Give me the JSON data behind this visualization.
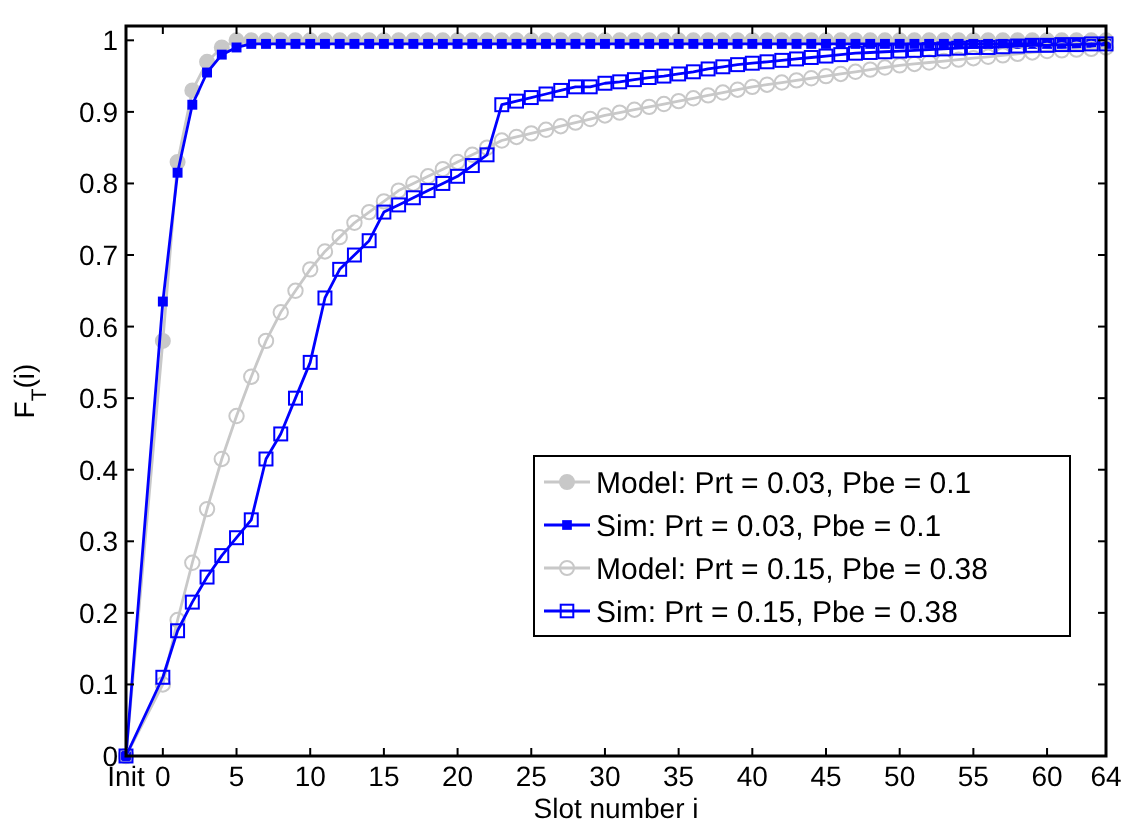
{
  "chart_data": {
    "type": "line",
    "xlabel": "Slot number i",
    "ylabel": "F$_{T}$(i)",
    "xlim": [
      -2.5,
      64
    ],
    "ylim": [
      0,
      1.02
    ],
    "xticks": [
      {
        "value": -2.5,
        "label": "Init"
      },
      0,
      5,
      10,
      15,
      20,
      25,
      30,
      35,
      40,
      45,
      50,
      55,
      60,
      64
    ],
    "yticks": [
      0,
      0.1,
      0.2,
      0.3,
      0.4,
      0.5,
      0.6,
      0.7,
      0.8,
      0.9,
      1
    ],
    "x": [
      -2.5,
      0,
      1,
      2,
      3,
      4,
      5,
      6,
      7,
      8,
      9,
      10,
      11,
      12,
      13,
      14,
      15,
      16,
      17,
      18,
      19,
      20,
      21,
      22,
      23,
      24,
      25,
      26,
      27,
      28,
      29,
      30,
      31,
      32,
      33,
      34,
      35,
      36,
      37,
      38,
      39,
      40,
      41,
      42,
      43,
      44,
      45,
      46,
      47,
      48,
      49,
      50,
      51,
      52,
      53,
      54,
      55,
      56,
      57,
      58,
      59,
      60,
      61,
      62,
      63,
      64
    ],
    "legend": "right",
    "line_style": "solid",
    "series": [
      {
        "name": "Model: Prt = 0.03, Pbe = 0.1",
        "color": "#c8c8c8",
        "marker": "circle",
        "values": [
          0,
          0.58,
          0.83,
          0.93,
          0.97,
          0.99,
          1,
          1,
          1,
          1,
          1,
          1,
          1,
          1,
          1,
          1,
          1,
          1,
          1,
          1,
          1,
          1,
          1,
          1,
          1,
          1,
          1,
          1,
          1,
          1,
          1,
          1,
          1,
          1,
          1,
          1,
          1,
          1,
          1,
          1,
          1,
          1,
          1,
          1,
          1,
          1,
          1,
          1,
          1,
          1,
          1,
          1,
          1,
          1,
          1,
          1,
          1,
          1,
          1,
          1,
          1,
          1,
          1,
          1,
          1,
          1
        ]
      },
      {
        "name": "Sim: Prt = 0.03, Pbe = 0.1",
        "color": "#0000ff",
        "marker": "square",
        "values": [
          0,
          0.635,
          0.815,
          0.91,
          0.955,
          0.98,
          0.99,
          0.995,
          0.995,
          0.995,
          0.995,
          0.995,
          0.995,
          0.995,
          0.995,
          0.995,
          0.995,
          0.995,
          0.995,
          0.995,
          0.995,
          0.995,
          0.995,
          0.995,
          0.995,
          0.995,
          0.995,
          0.995,
          0.995,
          0.995,
          0.995,
          0.995,
          0.995,
          0.995,
          0.995,
          0.995,
          0.995,
          0.995,
          0.995,
          0.995,
          0.995,
          0.995,
          0.995,
          0.995,
          0.995,
          0.995,
          0.995,
          0.995,
          0.995,
          0.995,
          0.995,
          0.995,
          0.995,
          0.995,
          0.995,
          0.995,
          0.995,
          0.995,
          0.995,
          0.995,
          0.995,
          0.995,
          0.995,
          0.995,
          0.995,
          0.995
        ]
      },
      {
        "name": "Model: Prt = 0.15, Pbe = 0.38",
        "color": "#c8c8c8",
        "marker": "circle",
        "values": [
          0,
          0.1,
          0.19,
          0.27,
          0.345,
          0.415,
          0.475,
          0.53,
          0.58,
          0.62,
          0.65,
          0.68,
          0.705,
          0.725,
          0.745,
          0.76,
          0.775,
          0.79,
          0.8,
          0.81,
          0.82,
          0.83,
          0.84,
          0.85,
          0.86,
          0.865,
          0.87,
          0.875,
          0.88,
          0.885,
          0.89,
          0.895,
          0.899,
          0.903,
          0.907,
          0.911,
          0.915,
          0.919,
          0.923,
          0.927,
          0.931,
          0.935,
          0.938,
          0.941,
          0.944,
          0.947,
          0.95,
          0.953,
          0.956,
          0.959,
          0.962,
          0.965,
          0.967,
          0.969,
          0.971,
          0.973,
          0.975,
          0.977,
          0.979,
          0.981,
          0.983,
          0.985,
          0.986,
          0.987,
          0.988,
          0.99
        ]
      },
      {
        "name": "Sim: Prt = 0.15, Pbe = 0.38",
        "color": "#0000ff",
        "marker": "square",
        "values": [
          0,
          0.11,
          0.175,
          0.215,
          0.25,
          0.28,
          0.305,
          0.33,
          0.415,
          0.45,
          0.5,
          0.55,
          0.64,
          0.68,
          0.7,
          0.72,
          0.76,
          0.77,
          0.78,
          0.79,
          0.8,
          0.81,
          0.825,
          0.84,
          0.91,
          0.915,
          0.92,
          0.925,
          0.93,
          0.935,
          0.935,
          0.94,
          0.942,
          0.945,
          0.948,
          0.95,
          0.953,
          0.956,
          0.96,
          0.963,
          0.966,
          0.968,
          0.97,
          0.972,
          0.974,
          0.976,
          0.978,
          0.98,
          0.982,
          0.983,
          0.984,
          0.985,
          0.986,
          0.987,
          0.988,
          0.989,
          0.99,
          0.99,
          0.991,
          0.992,
          0.993,
          0.993,
          0.994,
          0.994,
          0.995,
          0.995
        ]
      }
    ]
  }
}
